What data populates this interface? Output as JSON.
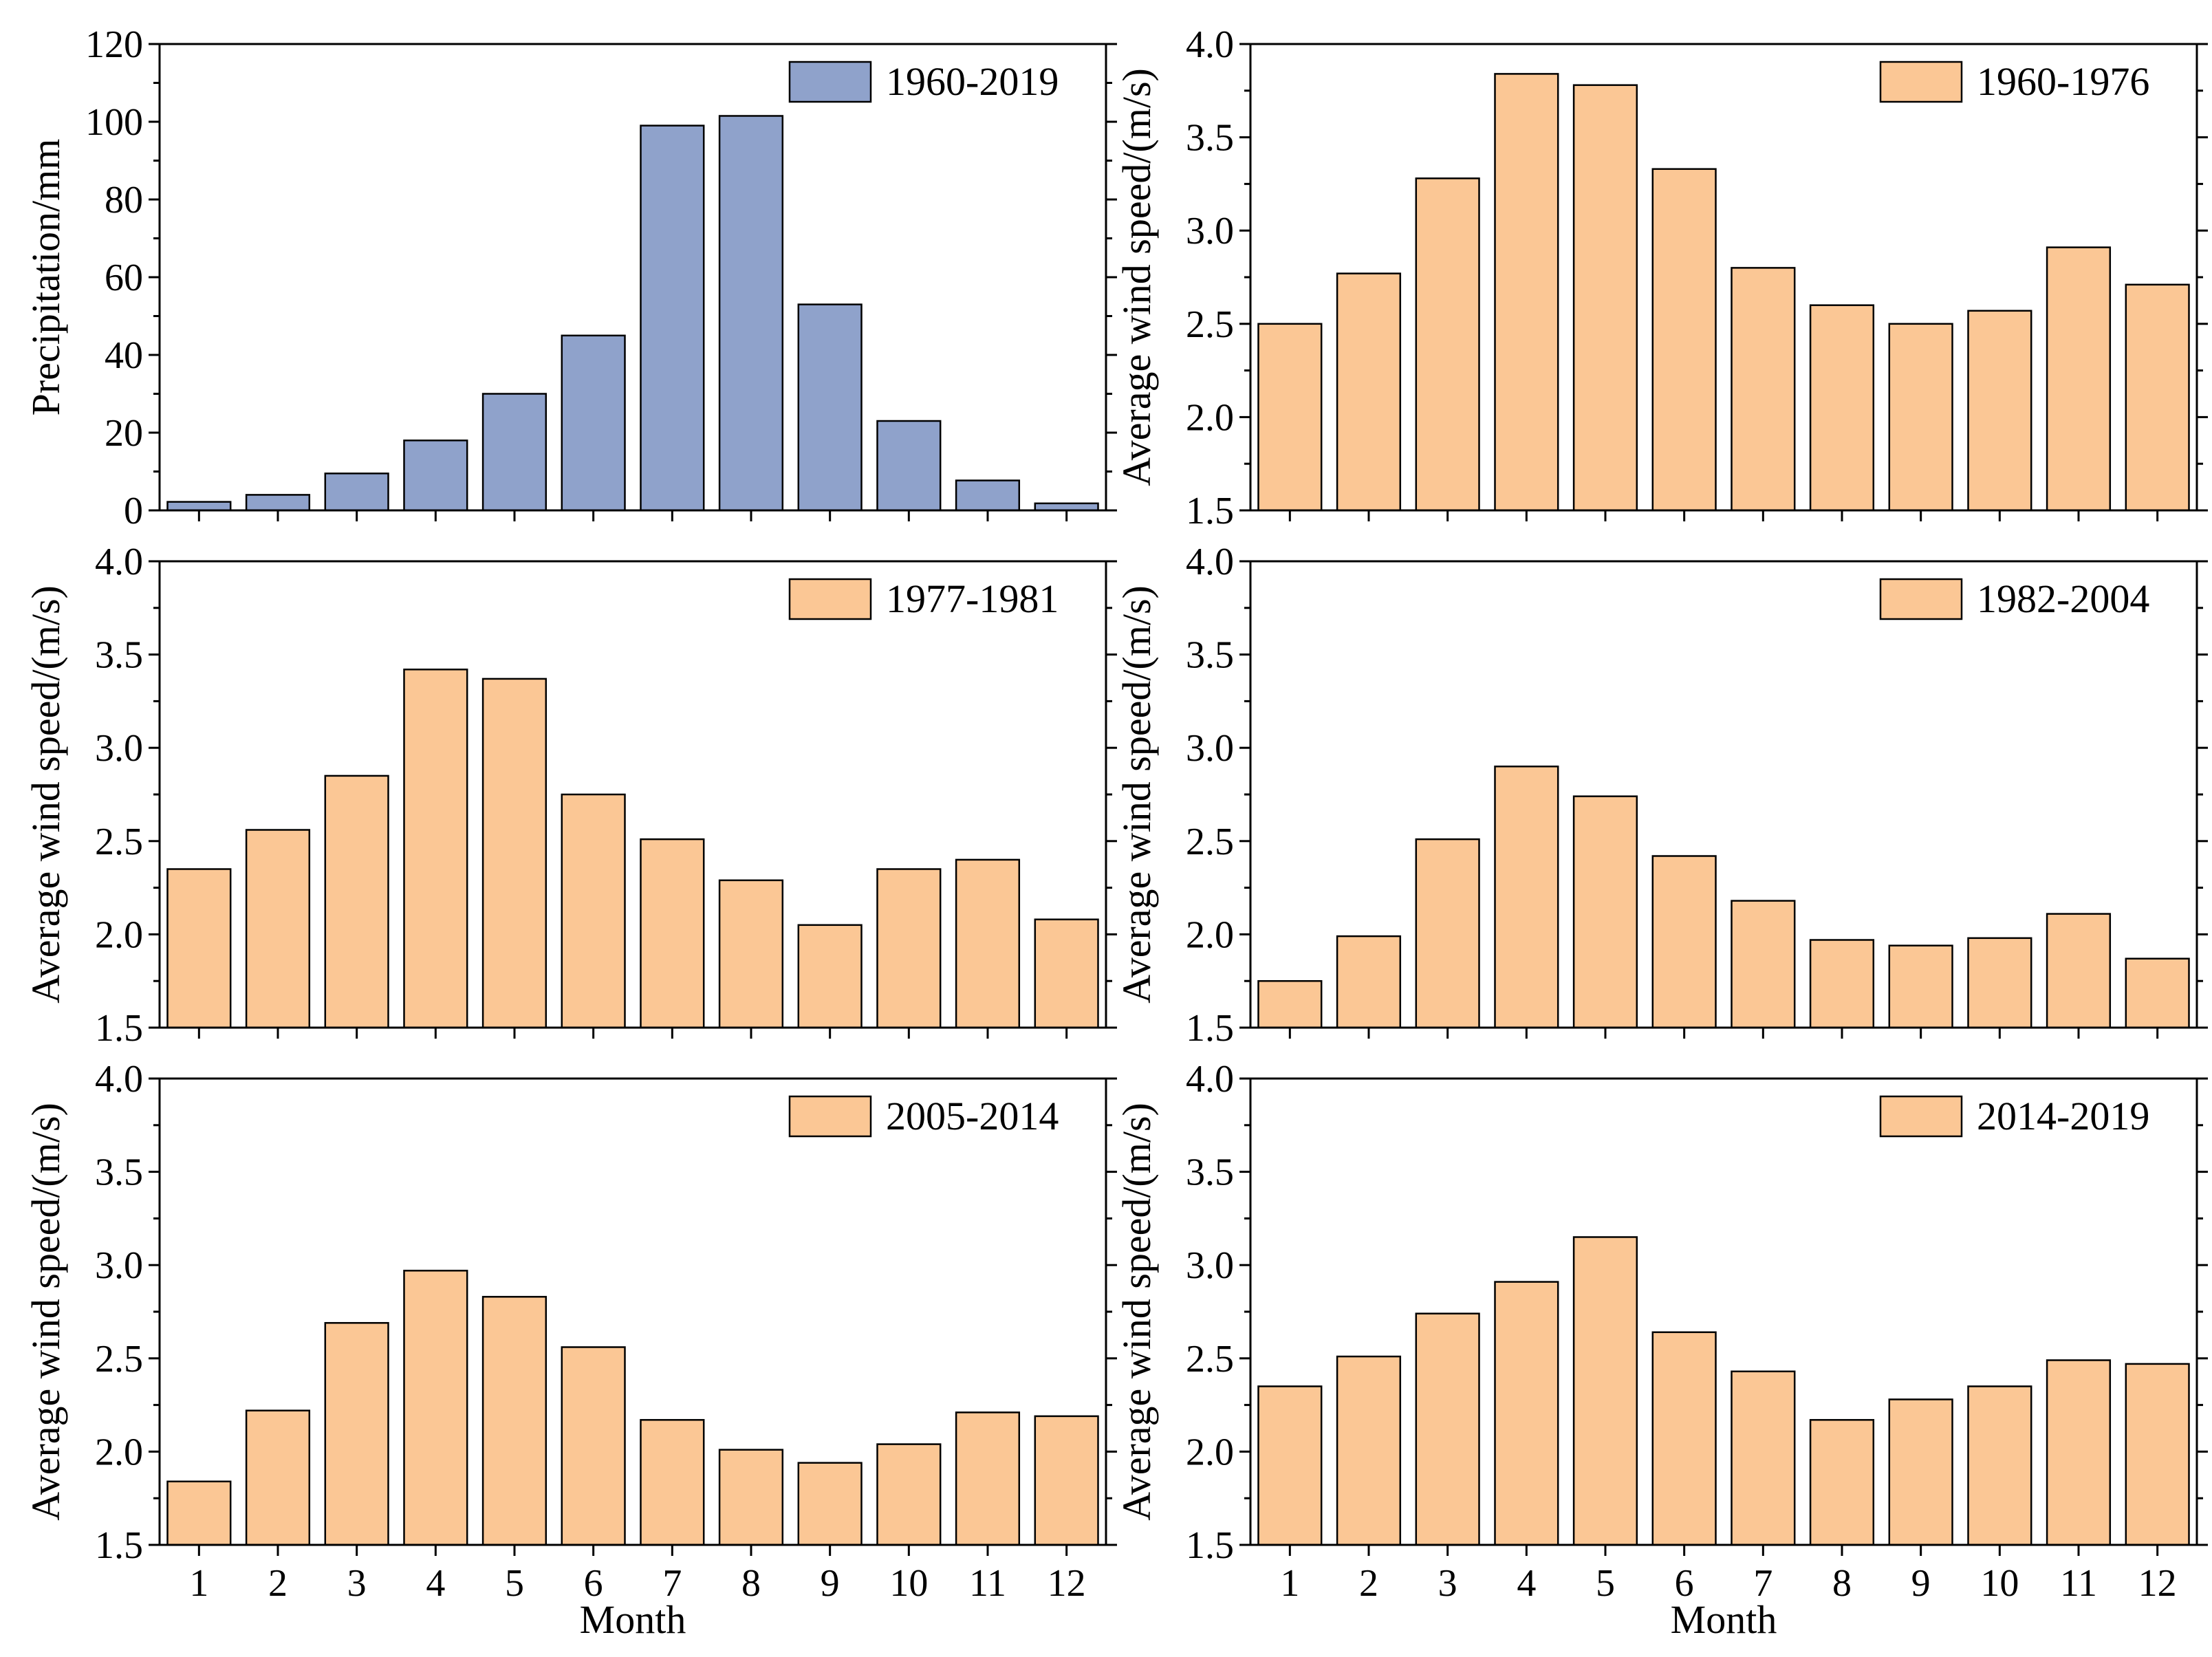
{
  "chart_data": [
    {
      "type": "bar",
      "categories": [
        "1",
        "2",
        "3",
        "4",
        "5",
        "6",
        "7",
        "8",
        "9",
        "10",
        "11",
        "12"
      ],
      "values": [
        2.2,
        4.0,
        9.5,
        18,
        30,
        45,
        99,
        101.5,
        53,
        23,
        7.7,
        1.8
      ],
      "ylabel": "Precipitation/mm",
      "xlabel": "",
      "ylim": [
        0,
        120
      ],
      "yticks": [
        "0",
        "20",
        "40",
        "60",
        "80",
        "100",
        "120"
      ],
      "legend": "1960-2019",
      "legend_position": "top-right",
      "color": "#8fa2cb"
    },
    {
      "type": "bar",
      "categories": [
        "1",
        "2",
        "3",
        "4",
        "5",
        "6",
        "7",
        "8",
        "9",
        "10",
        "11",
        "12"
      ],
      "values": [
        2.5,
        2.77,
        3.28,
        3.84,
        3.78,
        3.33,
        2.8,
        2.6,
        2.5,
        2.57,
        2.91,
        2.71
      ],
      "ylabel": "Average wind speed/(m/s)",
      "xlabel": "",
      "ylim": [
        1.5,
        4.0
      ],
      "yticks": [
        "1.5",
        "2.0",
        "2.5",
        "3.0",
        "3.5",
        "4.0"
      ],
      "legend": "1960-1976",
      "legend_position": "top-right",
      "color": "#fbc795"
    },
    {
      "type": "bar",
      "categories": [
        "1",
        "2",
        "3",
        "4",
        "5",
        "6",
        "7",
        "8",
        "9",
        "10",
        "11",
        "12"
      ],
      "values": [
        2.35,
        2.56,
        2.85,
        3.42,
        3.37,
        2.75,
        2.51,
        2.29,
        2.05,
        2.35,
        2.4,
        2.08
      ],
      "ylabel": "Average wind speed/(m/s)",
      "xlabel": "",
      "ylim": [
        1.5,
        4.0
      ],
      "yticks": [
        "1.5",
        "2.0",
        "2.5",
        "3.0",
        "3.5",
        "4.0"
      ],
      "legend": "1977-1981",
      "legend_position": "top-right",
      "color": "#fbc795"
    },
    {
      "type": "bar",
      "categories": [
        "1",
        "2",
        "3",
        "4",
        "5",
        "6",
        "7",
        "8",
        "9",
        "10",
        "11",
        "12"
      ],
      "values": [
        1.75,
        1.99,
        2.51,
        2.9,
        2.74,
        2.42,
        2.18,
        1.97,
        1.94,
        1.98,
        2.11,
        1.87
      ],
      "ylabel": "Average wind speed/(m/s)",
      "xlabel": "",
      "ylim": [
        1.5,
        4.0
      ],
      "yticks": [
        "1.5",
        "2.0",
        "2.5",
        "3.0",
        "3.5",
        "4.0"
      ],
      "legend": "1982-2004",
      "legend_position": "top-right",
      "color": "#fbc795"
    },
    {
      "type": "bar",
      "categories": [
        "1",
        "2",
        "3",
        "4",
        "5",
        "6",
        "7",
        "8",
        "9",
        "10",
        "11",
        "12"
      ],
      "values": [
        1.84,
        2.22,
        2.69,
        2.97,
        2.83,
        2.56,
        2.17,
        2.01,
        1.94,
        2.04,
        2.21,
        2.19
      ],
      "ylabel": "Average wind speed/(m/s)",
      "xlabel": "Month",
      "ylim": [
        1.5,
        4.0
      ],
      "yticks": [
        "1.5",
        "2.0",
        "2.5",
        "3.0",
        "3.5",
        "4.0"
      ],
      "legend": "2005-2014",
      "legend_position": "top-right",
      "color": "#fbc795"
    },
    {
      "type": "bar",
      "categories": [
        "1",
        "2",
        "3",
        "4",
        "5",
        "6",
        "7",
        "8",
        "9",
        "10",
        "11",
        "12"
      ],
      "values": [
        2.35,
        2.51,
        2.74,
        2.91,
        3.15,
        2.64,
        2.43,
        2.17,
        2.28,
        2.35,
        2.49,
        2.47
      ],
      "ylabel": "Average wind speed/(m/s)",
      "xlabel": "Month",
      "ylim": [
        1.5,
        4.0
      ],
      "yticks": [
        "1.5",
        "2.0",
        "2.5",
        "3.0",
        "3.5",
        "4.0"
      ],
      "legend": "2014-2019",
      "legend_position": "top-right",
      "color": "#fbc795"
    }
  ]
}
